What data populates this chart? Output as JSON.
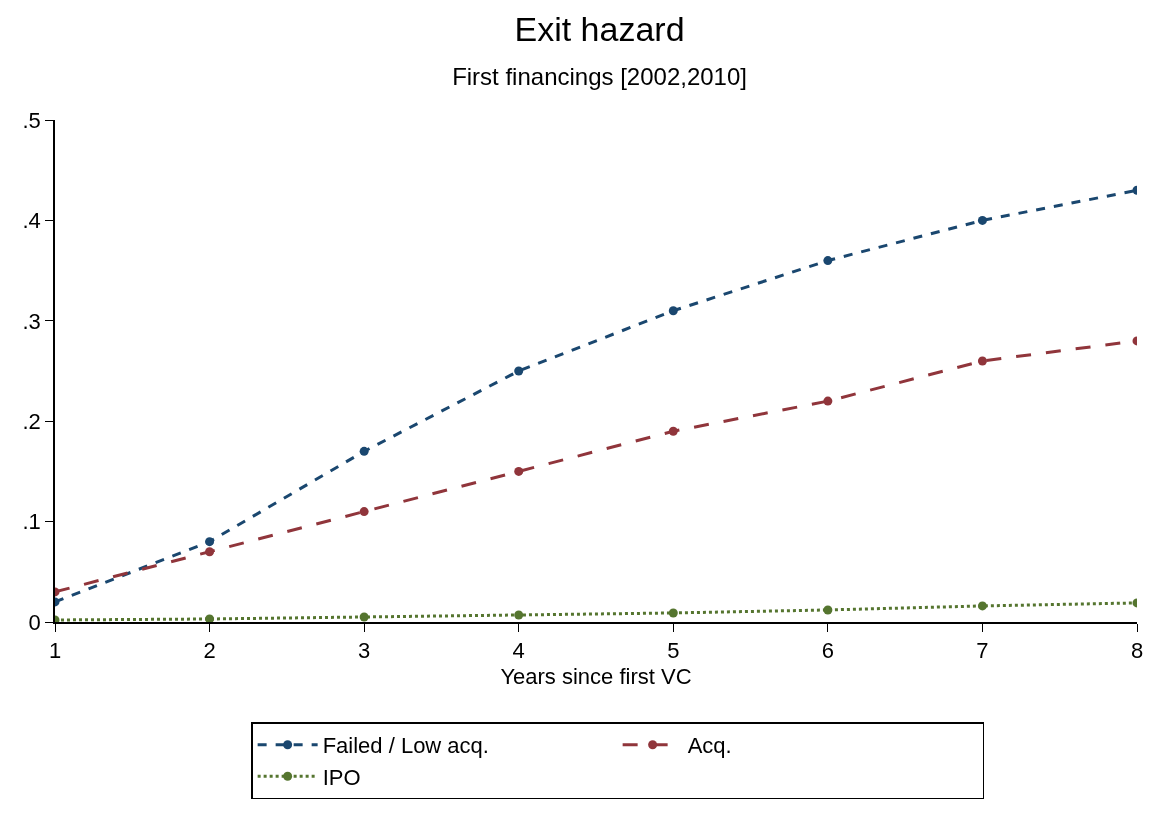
{
  "chart_data": {
    "type": "line",
    "title": "Exit hazard",
    "subtitle": "First financings [2002,2010]",
    "xlabel": "Years since first VC",
    "x": [
      1,
      2,
      3,
      4,
      5,
      6,
      7,
      8
    ],
    "series": [
      {
        "name": "Failed / Low acq.",
        "color": "#1a476f",
        "line_style": "dashed",
        "values": [
          0.02,
          0.08,
          0.17,
          0.25,
          0.31,
          0.36,
          0.4,
          0.43
        ]
      },
      {
        "name": "Acq.",
        "color": "#90353b",
        "line_style": "longdash",
        "values": [
          0.03,
          0.07,
          0.11,
          0.15,
          0.19,
          0.22,
          0.26,
          0.28
        ]
      },
      {
        "name": "IPO",
        "color": "#55752f",
        "line_style": "dotted",
        "values": [
          0.002,
          0.003,
          0.005,
          0.007,
          0.009,
          0.012,
          0.016,
          0.019
        ]
      }
    ],
    "xlim": [
      1,
      8
    ],
    "xticks": [
      1,
      2,
      3,
      4,
      5,
      6,
      7,
      8
    ],
    "ylim": [
      0,
      0.5
    ],
    "yticks": [
      {
        "value": 0,
        "label": "0"
      },
      {
        "value": 0.1,
        "label": ".1"
      },
      {
        "value": 0.2,
        "label": ".2"
      },
      {
        "value": 0.3,
        "label": ".3"
      },
      {
        "value": 0.4,
        "label": ".4"
      },
      {
        "value": 0.5,
        "label": ".5"
      }
    ],
    "legend": "bottom",
    "marker": "circle"
  }
}
